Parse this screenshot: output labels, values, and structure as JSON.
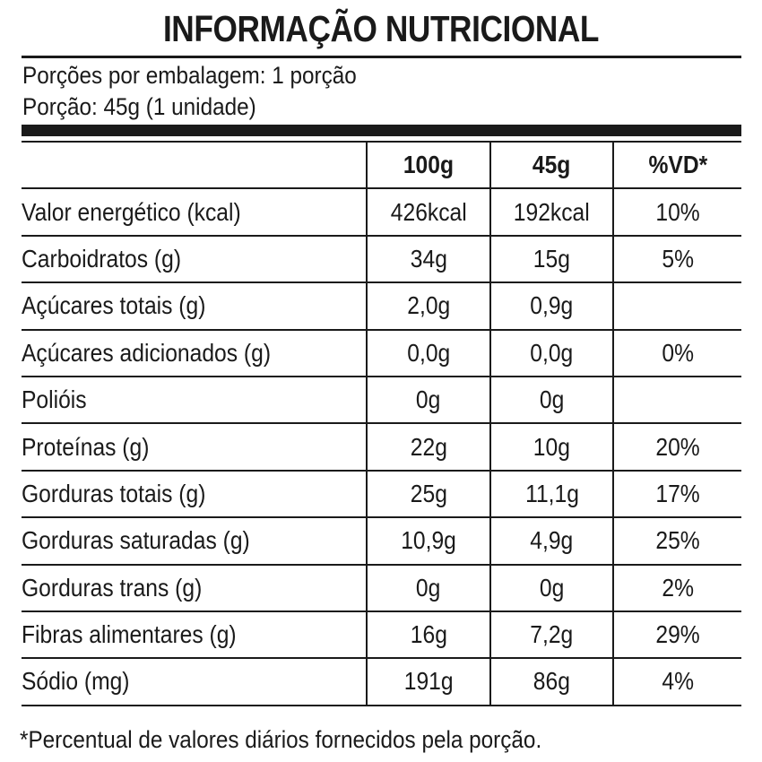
{
  "title": "INFORMAÇÃO NUTRICIONAL",
  "servings_per_package": "Porções por embalagem: 1 porção",
  "serving_size": "Porção: 45g (1 unidade)",
  "headers": [
    "",
    "100g",
    "45g",
    "%VD*"
  ],
  "rows": [
    {
      "label": "Valor energético (kcal)",
      "indent": 0,
      "per100": "426kcal",
      "per_serving": "192kcal",
      "dv": "10%"
    },
    {
      "label": "Carboidratos (g)",
      "indent": 0,
      "per100": "34g",
      "per_serving": "15g",
      "dv": "5%"
    },
    {
      "label": "Açúcares totais (g)",
      "indent": 1,
      "per100": "2,0g",
      "per_serving": "0,9g",
      "dv": ""
    },
    {
      "label": "Açúcares adicionados (g)",
      "indent": 2,
      "per100": "0,0g",
      "per_serving": "0,0g",
      "dv": "0%"
    },
    {
      "label": "Polióis",
      "indent": 0,
      "per100": "0g",
      "per_serving": "0g",
      "dv": ""
    },
    {
      "label": "Proteínas (g)",
      "indent": 0,
      "per100": "22g",
      "per_serving": "10g",
      "dv": "20%"
    },
    {
      "label": "Gorduras totais (g)",
      "indent": 0,
      "per100": "25g",
      "per_serving": "11,1g",
      "dv": "17%"
    },
    {
      "label": "Gorduras saturadas (g)",
      "indent": 1,
      "per100": "10,9g",
      "per_serving": "4,9g",
      "dv": "25%"
    },
    {
      "label": "Gorduras trans (g)",
      "indent": 1,
      "per100": "0g",
      "per_serving": "0g",
      "dv": "2%"
    },
    {
      "label": "Fibras alimentares (g)",
      "indent": 0,
      "per100": "16g",
      "per_serving": "7,2g",
      "dv": "29%"
    },
    {
      "label": "Sódio (mg)",
      "indent": 0,
      "per100": "191g",
      "per_serving": "86g",
      "dv": "4%"
    }
  ],
  "footnote": "*Percentual de valores diários fornecidos pela porção."
}
